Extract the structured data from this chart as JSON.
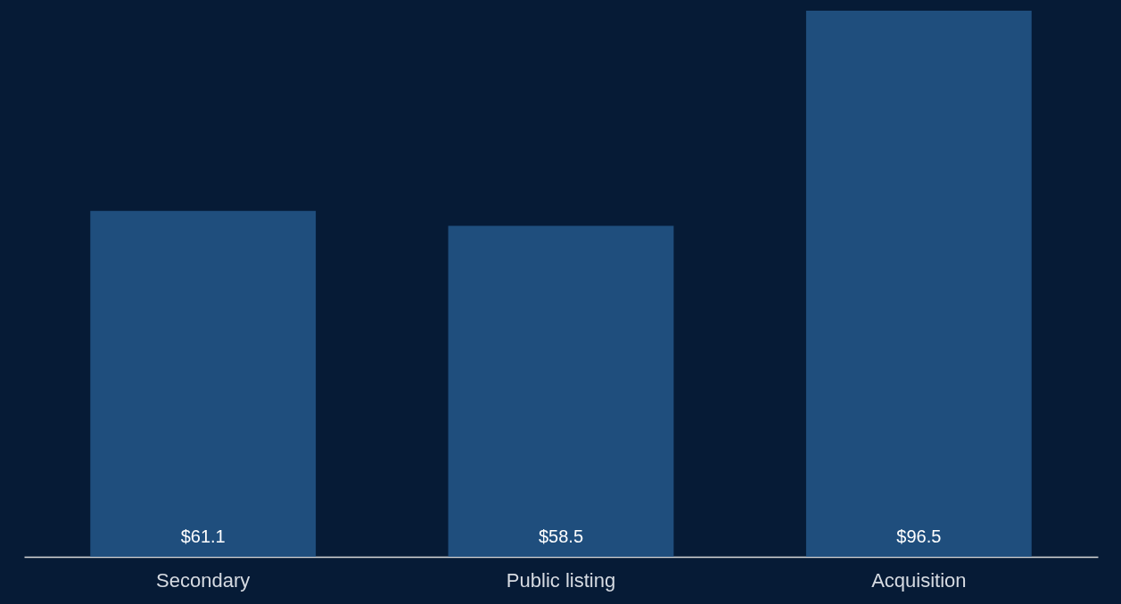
{
  "chart_data": {
    "type": "bar",
    "categories": [
      "Secondary",
      "Public listing",
      "Acquisition"
    ],
    "values": [
      61.1,
      58.5,
      96.5
    ],
    "value_labels": [
      "$61.1",
      "$58.5",
      "$96.5"
    ],
    "color": "#1f4e7d",
    "ylim": [
      0,
      96.5
    ]
  }
}
